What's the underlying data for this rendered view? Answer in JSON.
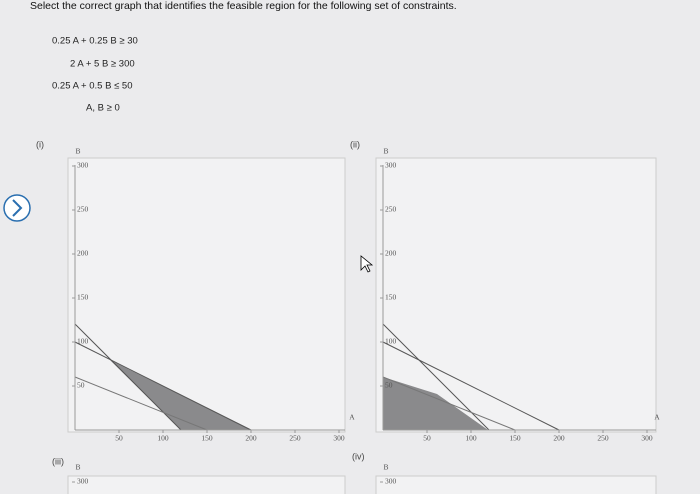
{
  "question": "Select the correct graph that identifies the feasible region for the following set of constraints.",
  "constraints": [
    "0.25 A  +  0.25 B  ≥  30",
    "2 A  +     5 B  ≥  300",
    "0.25 A  +    0.5 B  ≤  50",
    "A, B ≥ 0"
  ],
  "graphs": [
    {
      "label": "(i)",
      "y_axis": "B",
      "x_axis": "A",
      "yticks": [
        300,
        250,
        200,
        150,
        100,
        50
      ],
      "xticks": [
        50,
        100,
        150,
        200,
        250,
        300
      ]
    },
    {
      "label": "(ii)",
      "y_axis": "B",
      "x_axis": "A",
      "yticks": [
        300,
        250,
        200,
        150,
        100,
        50
      ],
      "xticks": [
        50,
        100,
        150,
        200,
        250,
        300
      ]
    },
    {
      "label": "(iii)",
      "y_axis": "B",
      "yticks": [
        300
      ]
    },
    {
      "label": "(iv)",
      "y_axis": "B",
      "yticks": [
        300
      ]
    }
  ]
}
